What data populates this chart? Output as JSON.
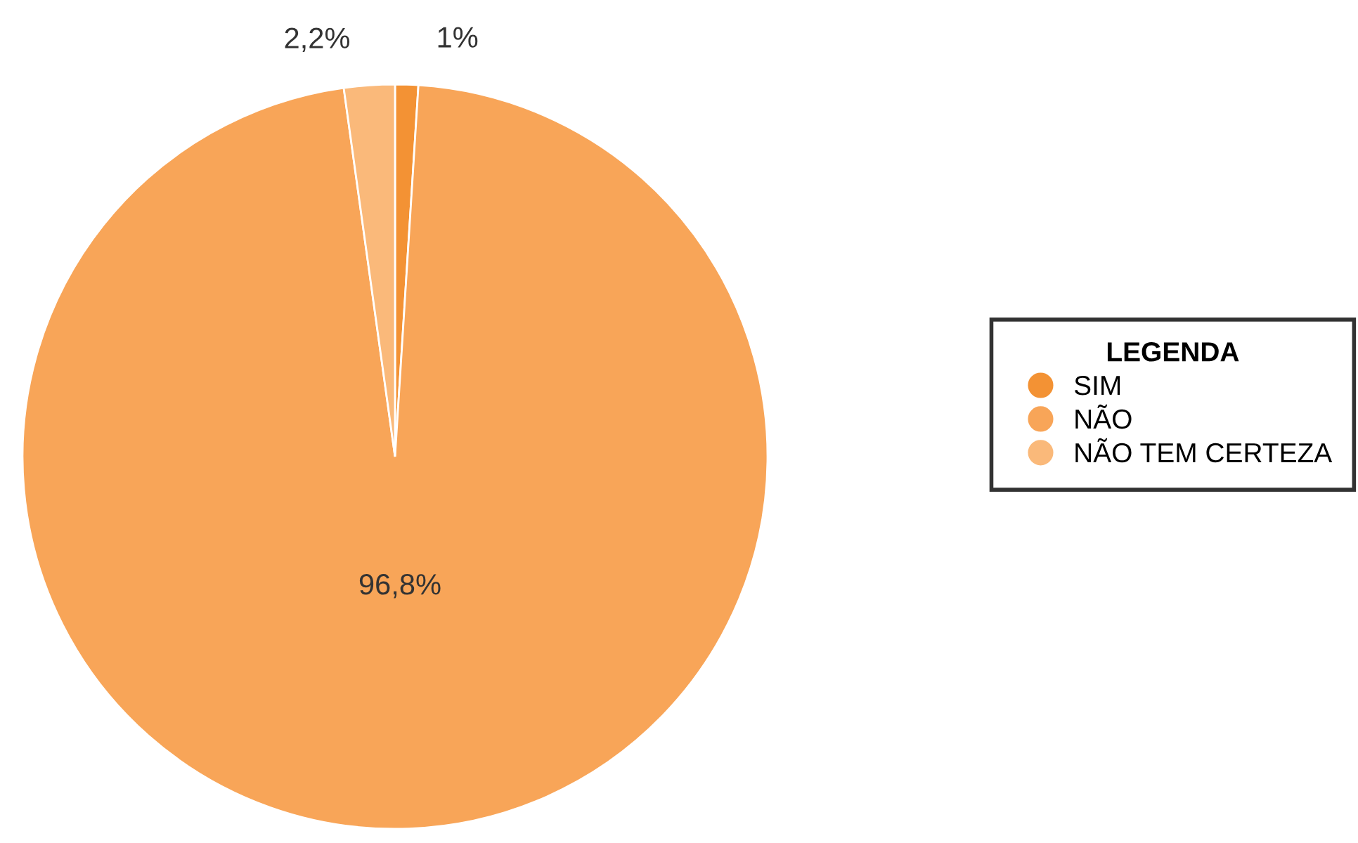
{
  "chart_data": {
    "type": "pie",
    "legend_title": "LEGENDA",
    "legend": "right",
    "categories": [
      "SIM",
      "NÃO",
      "NÃO TEM CERTEZA"
    ],
    "values": [
      1,
      96.8,
      2.2
    ],
    "colors": [
      "#f39234",
      "#f8a558",
      "#fab97a"
    ],
    "value_labels": [
      "1%",
      "96,8%",
      "2,2%"
    ]
  }
}
